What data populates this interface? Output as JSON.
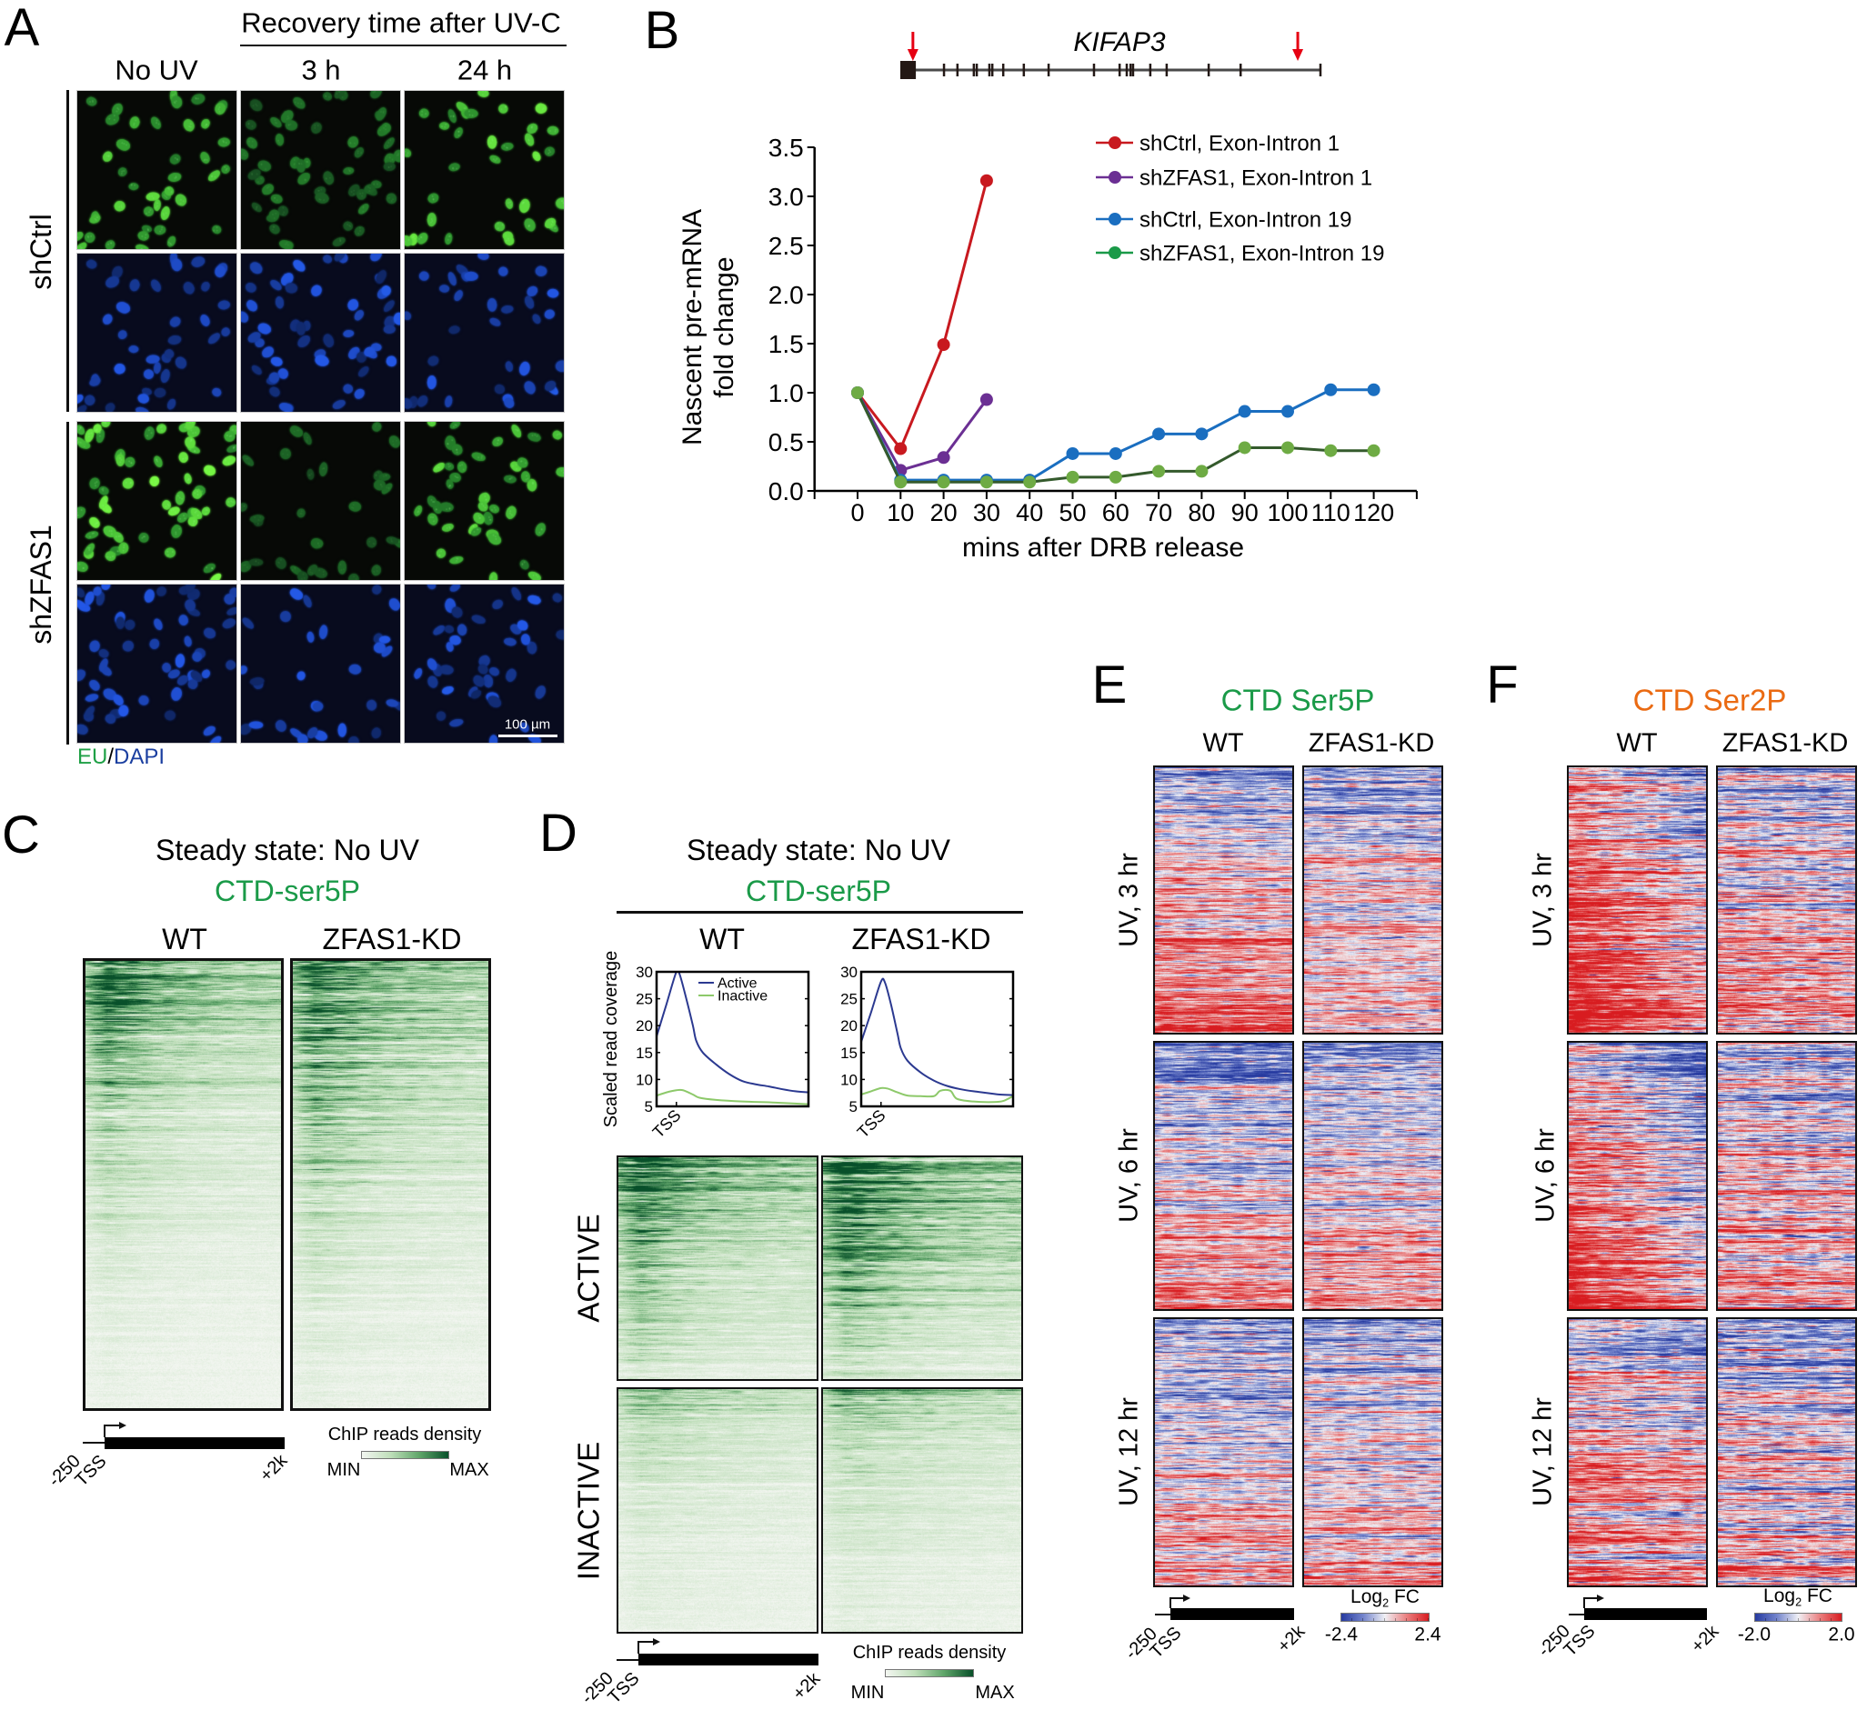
{
  "panel_letters": {
    "a": "A",
    "b": "B",
    "c": "C",
    "d": "D",
    "e": "E",
    "f": "F"
  },
  "colors": {
    "ser5p_title": "#1a9a48",
    "ser2p_title": "#ea6a12",
    "eu_label": "#1fa046",
    "dapi_label": "#1b3fa0",
    "primer_arrow": "#e60012",
    "gene_model": "#231815",
    "profile_active": "#2b3990",
    "profile_inactive": "#8dc96a"
  },
  "colorscales": {
    "greens": [
      "#f3f6f1",
      "#bedeb9",
      "#5fa569",
      "#08502a"
    ],
    "rdbu": [
      "#263aa0",
      "#7384cc",
      "#f0f0f5",
      "#ea7f7f",
      "#d81c20"
    ]
  },
  "panel_a": {
    "header": "Recovery time after UV-C",
    "columns": [
      "No UV",
      "3 h",
      "24 h"
    ],
    "groups": [
      "shCtrl",
      "shZFAS1"
    ],
    "stain_label": {
      "eu": "EU",
      "slash": "/",
      "dapi": "DAPI"
    },
    "scale_bar": "100 µm",
    "eu_signal": [
      [
        0.8,
        0.38,
        0.85
      ],
      [
        0.92,
        0.3,
        0.8
      ]
    ],
    "nuclei_count": [
      [
        42,
        54,
        36
      ],
      [
        58,
        32,
        42
      ]
    ]
  },
  "panel_b": {
    "gene": "KIFAP3",
    "gene_model": {
      "first_exon": [
        0,
        0.037
      ],
      "exons": [
        0.104,
        0.136,
        0.175,
        0.182,
        0.212,
        0.219,
        0.245,
        0.294,
        0.353,
        0.461,
        0.522,
        0.539,
        0.548,
        0.554,
        0.595,
        0.634,
        0.734,
        0.81,
        1.0
      ],
      "primer_arrows": [
        0.03,
        0.946
      ]
    },
    "ylabel_lines": [
      "Nascent pre-mRNA",
      "fold change"
    ],
    "xlabel": "mins after DRB release"
  },
  "panel_c": {
    "title": "Steady state: No UV",
    "mark": "CTD-ser5P",
    "columns": [
      "WT",
      "ZFAS1-KD"
    ],
    "axis": [
      "-250",
      "TSS",
      "+2k"
    ],
    "colorbar": {
      "title": "ChIP reads density",
      "min": "MIN",
      "max": "MAX"
    }
  },
  "panel_d": {
    "title": "Steady state: No UV",
    "mark": "CTD-ser5P",
    "columns": [
      "WT",
      "ZFAS1-KD"
    ],
    "profile_ylabel": "Scaled read coverage",
    "groups": [
      "ACTIVE",
      "INACTIVE"
    ],
    "axis": [
      "-250",
      "TSS",
      "+2k"
    ],
    "colorbar": {
      "title": "ChIP reads density",
      "min": "MIN",
      "max": "MAX"
    }
  },
  "panel_e": {
    "mark": "CTD Ser5P",
    "columns": [
      "WT",
      "ZFAS1-KD"
    ],
    "rows": [
      "UV, 3 hr",
      "UV, 6 hr",
      "UV, 12 hr"
    ],
    "axis": [
      "-250",
      "TSS",
      "+2k"
    ],
    "colorbar": {
      "title_base": "Log",
      "title_sub": "2",
      "title_rest": " FC",
      "min": "-2.4",
      "max": "2.4"
    }
  },
  "panel_f": {
    "mark": "CTD Ser2P",
    "columns": [
      "WT",
      "ZFAS1-KD"
    ],
    "rows": [
      "UV, 3 hr",
      "UV, 6 hr",
      "UV, 12 hr"
    ],
    "axis": [
      "-250",
      "TSS",
      "+2k"
    ],
    "colorbar": {
      "title_base": "Log",
      "title_sub": "2",
      "title_rest": " FC",
      "min": "-2.0",
      "max": "2.0"
    }
  },
  "chart_data": [
    {
      "id": "b-line",
      "panel": "B",
      "type": "line",
      "title": "KIFAP3",
      "xlabel": "mins after DRB release",
      "ylabel": "Nascent pre-mRNA fold change",
      "x": [
        0,
        10,
        20,
        30,
        40,
        50,
        60,
        70,
        80,
        90,
        100,
        110,
        120
      ],
      "xtick_labels": [
        "0",
        "10",
        "20",
        "30",
        "40",
        "50",
        "60",
        "70",
        "80",
        "90",
        "100",
        "110",
        "120"
      ],
      "xlim": [
        -10,
        130
      ],
      "ylim": [
        0,
        3.5
      ],
      "yticks": [
        0,
        0.5,
        1.0,
        1.5,
        2.0,
        2.5,
        3.0,
        3.5
      ],
      "ytick_labels": [
        "0.0",
        "0.5",
        "1.0",
        "1.5",
        "2.0",
        "2.5",
        "3.0",
        "3.5"
      ],
      "grid": false,
      "legend": "top-right",
      "series": [
        {
          "name": "shCtrl, Exon-Intron 1",
          "color": "#c8191f",
          "marker_color": "#c8191f",
          "x": [
            0,
            10,
            20,
            30
          ],
          "values": [
            1.0,
            0.43,
            1.49,
            3.16
          ]
        },
        {
          "name": "shZFAS1, Exon-Intron 1",
          "color": "#6b2f93",
          "marker_color": "#6b2f93",
          "x": [
            0,
            10,
            20,
            30
          ],
          "values": [
            1.0,
            0.21,
            0.34,
            0.93
          ]
        },
        {
          "name": "shCtrl, Exon-Intron 19",
          "color": "#1a6ec0",
          "marker_color": "#1a6ec0",
          "x": [
            0,
            10,
            20,
            30,
            40,
            50,
            60,
            70,
            80,
            90,
            100,
            110,
            120
          ],
          "values": [
            1.0,
            0.11,
            0.11,
            0.11,
            0.11,
            0.38,
            0.38,
            0.58,
            0.58,
            0.81,
            0.81,
            1.03,
            1.03
          ]
        },
        {
          "name": "shZFAS1, Exon-Intron 19",
          "color": "#345a2c",
          "marker_color": "#6eab44",
          "legend_color": "#1a9a48",
          "x": [
            0,
            10,
            20,
            30,
            40,
            50,
            60,
            70,
            80,
            90,
            100,
            110,
            120
          ],
          "values": [
            1.0,
            0.09,
            0.09,
            0.09,
            0.09,
            0.14,
            0.14,
            0.2,
            0.2,
            0.44,
            0.44,
            0.41,
            0.41
          ]
        }
      ]
    },
    {
      "id": "d-profile-wt",
      "panel": "D",
      "type": "line",
      "title": "WT",
      "ylabel": "Scaled read coverage",
      "xlim": [
        -300,
        2000
      ],
      "ylim": [
        5,
        30
      ],
      "yticks": [
        5,
        10,
        15,
        20,
        25,
        30
      ],
      "ytick_labels": [
        "5",
        "10",
        "15",
        "20",
        "25",
        "30"
      ],
      "x_marker": {
        "label": "TSS",
        "value": 0
      },
      "legend": "top-right",
      "show_legend": true,
      "series": [
        {
          "name": "Active",
          "color": "#2b3990",
          "points": [
            [
              -300,
              18
            ],
            [
              -150,
              24
            ],
            [
              0,
              30
            ],
            [
              50,
              29.5
            ],
            [
              150,
              25
            ],
            [
              250,
              20
            ],
            [
              300,
              17.2
            ],
            [
              400,
              15
            ],
            [
              600,
              12.8
            ],
            [
              800,
              11
            ],
            [
              1000,
              9.7
            ],
            [
              1200,
              9.1
            ],
            [
              1400,
              8.7
            ],
            [
              1600,
              8.2
            ],
            [
              1800,
              7.8
            ],
            [
              2000,
              7.6
            ]
          ]
        },
        {
          "name": "Inactive",
          "color": "#8dc96a",
          "points": [
            [
              -300,
              7
            ],
            [
              -150,
              7.6
            ],
            [
              0,
              8
            ],
            [
              100,
              8
            ],
            [
              250,
              7.2
            ],
            [
              350,
              6.6
            ],
            [
              600,
              6.2
            ],
            [
              1000,
              5.9
            ],
            [
              1500,
              5.7
            ],
            [
              2000,
              5.4
            ]
          ]
        }
      ]
    },
    {
      "id": "d-profile-kd",
      "panel": "D",
      "type": "line",
      "title": "ZFAS1-KD",
      "ylabel": "Scaled read coverage",
      "xlim": [
        -300,
        2000
      ],
      "ylim": [
        5,
        30
      ],
      "yticks": [
        5,
        10,
        15,
        20,
        25,
        30
      ],
      "ytick_labels": [
        "5",
        "10",
        "15",
        "20",
        "25",
        "30"
      ],
      "x_marker": {
        "label": "TSS",
        "value": 0
      },
      "show_legend": false,
      "series": [
        {
          "name": "Active",
          "color": "#2b3990",
          "points": [
            [
              -300,
              17
            ],
            [
              -150,
              22.5
            ],
            [
              0,
              28.2
            ],
            [
              60,
              28
            ],
            [
              150,
              24
            ],
            [
              250,
              18.5
            ],
            [
              300,
              15.8
            ],
            [
              400,
              13.5
            ],
            [
              600,
              11.3
            ],
            [
              800,
              9.8
            ],
            [
              1000,
              8.8
            ],
            [
              1200,
              8.2
            ],
            [
              1400,
              7.8
            ],
            [
              1600,
              7.5
            ],
            [
              1800,
              7.2
            ],
            [
              2000,
              7.1
            ]
          ]
        },
        {
          "name": "Inactive",
          "color": "#8dc96a",
          "points": [
            [
              -300,
              7.2
            ],
            [
              -150,
              7.8
            ],
            [
              0,
              8.4
            ],
            [
              100,
              8.3
            ],
            [
              250,
              7.6
            ],
            [
              400,
              7.0
            ],
            [
              600,
              6.9
            ],
            [
              800,
              6.9
            ],
            [
              900,
              7.9
            ],
            [
              1050,
              7.9
            ],
            [
              1150,
              6.4
            ],
            [
              1400,
              5.9
            ],
            [
              1700,
              5.8
            ],
            [
              1850,
              6.0
            ],
            [
              2000,
              6.9
            ]
          ]
        }
      ]
    },
    {
      "id": "c-wt",
      "panel": "C",
      "type": "heatmap",
      "column": "WT",
      "colorscale": "greens",
      "scale_labels": [
        "MIN",
        "MAX"
      ],
      "row_profile": [
        0.95,
        0.72,
        0.52,
        0.4,
        0.31,
        0.23,
        0.16,
        0.11,
        0.07,
        0.05
      ],
      "tss_focus": 0.3
    },
    {
      "id": "c-kd",
      "panel": "C",
      "type": "heatmap",
      "column": "ZFAS1-KD",
      "colorscale": "greens",
      "scale_labels": [
        "MIN",
        "MAX"
      ],
      "row_profile": [
        0.95,
        0.8,
        0.62,
        0.5,
        0.39,
        0.29,
        0.21,
        0.15,
        0.1,
        0.07
      ],
      "tss_focus": 0.35
    },
    {
      "id": "d-active-wt",
      "panel": "D",
      "type": "heatmap",
      "group": "ACTIVE",
      "column": "WT",
      "colorscale": "greens",
      "scale_labels": [
        "MIN",
        "MAX"
      ],
      "row_profile": [
        0.98,
        0.85,
        0.72,
        0.6,
        0.5,
        0.4,
        0.3,
        0.2
      ],
      "tss_focus": 0.25
    },
    {
      "id": "d-active-kd",
      "panel": "D",
      "type": "heatmap",
      "group": "ACTIVE",
      "column": "ZFAS1-KD",
      "colorscale": "greens",
      "scale_labels": [
        "MIN",
        "MAX"
      ],
      "row_profile": [
        0.98,
        0.88,
        0.78,
        0.68,
        0.57,
        0.46,
        0.35,
        0.24
      ],
      "tss_focus": 0.3
    },
    {
      "id": "d-inactive-wt",
      "panel": "D",
      "type": "heatmap",
      "group": "INACTIVE",
      "column": "WT",
      "colorscale": "greens",
      "scale_labels": [
        "MIN",
        "MAX"
      ],
      "row_profile": [
        0.5,
        0.3,
        0.22,
        0.17,
        0.14,
        0.11,
        0.09,
        0.07
      ],
      "tss_focus": 0.6
    },
    {
      "id": "d-inactive-kd",
      "panel": "D",
      "type": "heatmap",
      "group": "INACTIVE",
      "column": "ZFAS1-KD",
      "colorscale": "greens",
      "scale_labels": [
        "MIN",
        "MAX"
      ],
      "row_profile": [
        0.58,
        0.38,
        0.28,
        0.22,
        0.18,
        0.14,
        0.11,
        0.09
      ],
      "tss_focus": 0.6
    },
    {
      "id": "e-3hr-wt",
      "panel": "E",
      "type": "heatmap",
      "row": "UV, 3 hr",
      "column": "WT",
      "colorscale": "rdbu",
      "range": [
        -2.4,
        2.4
      ],
      "row_profile": [
        -1.3,
        -0.6,
        -0.1,
        0.3,
        0.6,
        0.8,
        1.0,
        1.4
      ],
      "tss_bias": 0.2
    },
    {
      "id": "e-3hr-kd",
      "panel": "E",
      "type": "heatmap",
      "row": "UV, 3 hr",
      "column": "ZFAS1-KD",
      "colorscale": "rdbu",
      "range": [
        -2.4,
        2.4
      ],
      "row_profile": [
        -1.1,
        -0.6,
        -0.3,
        0.0,
        0.3,
        0.5,
        0.7,
        1.0
      ],
      "tss_bias": 0.0
    },
    {
      "id": "e-6hr-wt",
      "panel": "E",
      "type": "heatmap",
      "row": "UV, 6 hr",
      "column": "WT",
      "colorscale": "rdbu",
      "range": [
        -2.4,
        2.4
      ],
      "row_profile": [
        -1.6,
        -1.0,
        -0.5,
        0.0,
        0.3,
        0.6,
        0.9,
        1.3
      ],
      "tss_bias": 0.2
    },
    {
      "id": "e-6hr-kd",
      "panel": "E",
      "type": "heatmap",
      "row": "UV, 6 hr",
      "column": "ZFAS1-KD",
      "colorscale": "rdbu",
      "range": [
        -2.4,
        2.4
      ],
      "row_profile": [
        -1.1,
        -0.7,
        -0.3,
        0.0,
        0.2,
        0.5,
        0.7,
        1.0
      ],
      "tss_bias": 0.0
    },
    {
      "id": "e-12hr-wt",
      "panel": "E",
      "type": "heatmap",
      "row": "UV, 12 hr",
      "column": "WT",
      "colorscale": "rdbu",
      "range": [
        -2.4,
        2.4
      ],
      "row_profile": [
        -1.3,
        -0.7,
        -0.3,
        0.0,
        0.3,
        0.5,
        0.8,
        1.2
      ],
      "tss_bias": 0.1
    },
    {
      "id": "e-12hr-kd",
      "panel": "E",
      "type": "heatmap",
      "row": "UV, 12 hr",
      "column": "ZFAS1-KD",
      "colorscale": "rdbu",
      "range": [
        -2.4,
        2.4
      ],
      "row_profile": [
        -1.1,
        -0.6,
        -0.3,
        0.0,
        0.2,
        0.4,
        0.7,
        1.0
      ],
      "tss_bias": 0.0
    },
    {
      "id": "f-3hr-wt",
      "panel": "F",
      "type": "heatmap",
      "row": "UV, 3 hr",
      "column": "WT",
      "colorscale": "rdbu",
      "range": [
        -2.0,
        2.0
      ],
      "row_profile": [
        -0.6,
        -0.1,
        0.3,
        0.5,
        0.7,
        0.9,
        1.1,
        1.4
      ],
      "tss_bias": 1.2
    },
    {
      "id": "f-3hr-kd",
      "panel": "F",
      "type": "heatmap",
      "row": "UV, 3 hr",
      "column": "ZFAS1-KD",
      "colorscale": "rdbu",
      "range": [
        -2.0,
        2.0
      ],
      "row_profile": [
        -0.7,
        -0.4,
        -0.1,
        0.1,
        0.3,
        0.4,
        0.5,
        0.8
      ],
      "tss_bias": 0.2
    },
    {
      "id": "f-6hr-wt",
      "panel": "F",
      "type": "heatmap",
      "row": "UV, 6 hr",
      "column": "WT",
      "colorscale": "rdbu",
      "range": [
        -2.0,
        2.0
      ],
      "row_profile": [
        -0.6,
        -0.1,
        0.3,
        0.5,
        0.7,
        0.9,
        1.1,
        1.4
      ],
      "tss_bias": 1.3
    },
    {
      "id": "f-6hr-kd",
      "panel": "F",
      "type": "heatmap",
      "row": "UV, 6 hr",
      "column": "ZFAS1-KD",
      "colorscale": "rdbu",
      "range": [
        -2.0,
        2.0
      ],
      "row_profile": [
        -0.7,
        -0.4,
        -0.1,
        0.1,
        0.3,
        0.4,
        0.5,
        0.8
      ],
      "tss_bias": 0.2
    },
    {
      "id": "f-12hr-wt",
      "panel": "F",
      "type": "heatmap",
      "row": "UV, 12 hr",
      "column": "WT",
      "colorscale": "rdbu",
      "range": [
        -2.0,
        2.0
      ],
      "row_profile": [
        -0.7,
        -0.2,
        0.2,
        0.4,
        0.5,
        0.6,
        0.8,
        1.0
      ],
      "tss_bias": 0.5
    },
    {
      "id": "f-12hr-kd",
      "panel": "F",
      "type": "heatmap",
      "row": "UV, 12 hr",
      "column": "ZFAS1-KD",
      "colorscale": "rdbu",
      "range": [
        -2.0,
        2.0
      ],
      "row_profile": [
        -0.9,
        -0.5,
        -0.2,
        0.0,
        0.2,
        0.3,
        0.4,
        0.7
      ],
      "tss_bias": 0.2
    }
  ]
}
